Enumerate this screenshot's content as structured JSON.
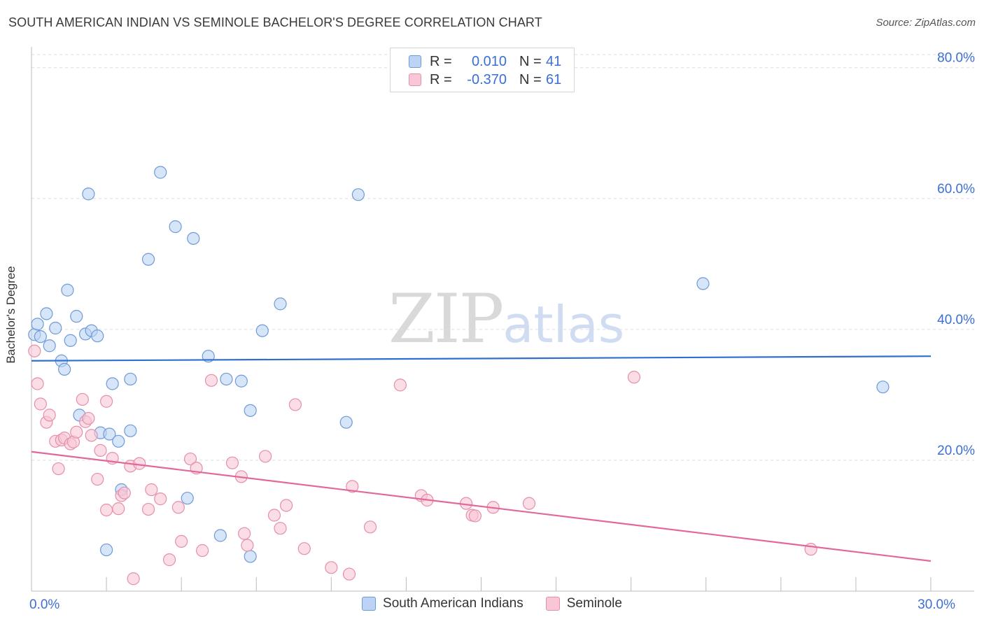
{
  "title": "SOUTH AMERICAN INDIAN VS SEMINOLE BACHELOR'S DEGREE CORRELATION CHART",
  "source": "Source: ZipAtlas.com",
  "watermark": {
    "zip": "ZIP",
    "atlas": "atlas"
  },
  "legend": {
    "rows": [
      {
        "r_label": "R =",
        "r_value": "0.010",
        "n_label": "N =",
        "n_value": "41"
      },
      {
        "r_label": "R =",
        "r_value": "-0.370",
        "n_label": "N =",
        "n_value": "61"
      }
    ]
  },
  "colors": {
    "blue_fill": "#bcd3f5",
    "blue_stroke": "#6e9ad6",
    "blue_line": "#2f6fd0",
    "pink_fill": "#f9c6d6",
    "pink_stroke": "#e58fab",
    "pink_line": "#e0689a",
    "tick_text": "#3b6fd6",
    "grid": "#dddddd"
  },
  "chart_data": {
    "type": "scatter",
    "title": "SOUTH AMERICAN INDIAN VS SEMINOLE BACHELOR'S DEGREE CORRELATION CHART",
    "xlabel": "",
    "ylabel": "Bachelor's Degree",
    "xlim": [
      0,
      30
    ],
    "ylim": [
      0,
      82
    ],
    "x_tick_labels": [
      {
        "value": 0,
        "label": "0.0%"
      },
      {
        "value": 30,
        "label": "30.0%"
      }
    ],
    "y_ticks": [
      {
        "value": 20,
        "label": "20.0%"
      },
      {
        "value": 40,
        "label": "40.0%"
      },
      {
        "value": 60,
        "label": "60.0%"
      },
      {
        "value": 80,
        "label": "80.0%"
      }
    ],
    "grid": "horizontal dashed",
    "legend_position": "bottom",
    "series": [
      {
        "name": "South American Indians",
        "color": "#6e9ad6",
        "trend": {
          "x": [
            0,
            30
          ],
          "y": [
            35.2,
            35.9
          ]
        },
        "points": [
          [
            0.1,
            39.2
          ],
          [
            0.2,
            40.8
          ],
          [
            0.3,
            38.9
          ],
          [
            0.5,
            42.4
          ],
          [
            0.6,
            37.5
          ],
          [
            0.8,
            40.2
          ],
          [
            1.0,
            35.2
          ],
          [
            1.1,
            33.9
          ],
          [
            1.2,
            46.0
          ],
          [
            1.3,
            38.3
          ],
          [
            1.5,
            42.0
          ],
          [
            1.6,
            26.9
          ],
          [
            1.8,
            39.3
          ],
          [
            1.9,
            60.7
          ],
          [
            2.0,
            39.8
          ],
          [
            2.2,
            39.0
          ],
          [
            2.3,
            24.2
          ],
          [
            2.5,
            6.3
          ],
          [
            2.6,
            24.0
          ],
          [
            2.7,
            31.7
          ],
          [
            2.9,
            22.9
          ],
          [
            3.0,
            15.5
          ],
          [
            3.3,
            32.4
          ],
          [
            3.3,
            24.5
          ],
          [
            3.9,
            50.7
          ],
          [
            4.3,
            64.0
          ],
          [
            4.8,
            55.7
          ],
          [
            5.2,
            14.2
          ],
          [
            5.4,
            53.9
          ],
          [
            5.9,
            35.9
          ],
          [
            6.3,
            8.5
          ],
          [
            6.5,
            32.4
          ],
          [
            7.0,
            32.1
          ],
          [
            7.3,
            5.3
          ],
          [
            7.3,
            27.6
          ],
          [
            7.7,
            39.8
          ],
          [
            8.3,
            43.9
          ],
          [
            10.5,
            25.8
          ],
          [
            10.9,
            60.6
          ],
          [
            22.4,
            47.0
          ],
          [
            28.4,
            31.2
          ]
        ]
      },
      {
        "name": "Seminole",
        "color": "#e58fab",
        "trend": {
          "x": [
            0,
            30
          ],
          "y": [
            21.3,
            4.6
          ]
        },
        "points": [
          [
            0.1,
            36.7
          ],
          [
            0.2,
            31.7
          ],
          [
            0.3,
            28.6
          ],
          [
            0.5,
            25.8
          ],
          [
            0.6,
            26.9
          ],
          [
            0.8,
            22.9
          ],
          [
            0.9,
            18.7
          ],
          [
            1.0,
            23.1
          ],
          [
            1.1,
            23.4
          ],
          [
            1.3,
            22.5
          ],
          [
            1.4,
            22.8
          ],
          [
            1.5,
            24.3
          ],
          [
            1.7,
            29.3
          ],
          [
            1.8,
            25.9
          ],
          [
            1.9,
            26.4
          ],
          [
            2.0,
            23.8
          ],
          [
            2.2,
            17.1
          ],
          [
            2.3,
            21.5
          ],
          [
            2.5,
            29.0
          ],
          [
            2.5,
            12.4
          ],
          [
            2.7,
            20.3
          ],
          [
            2.9,
            12.6
          ],
          [
            3.0,
            14.6
          ],
          [
            3.1,
            15.0
          ],
          [
            3.3,
            19.1
          ],
          [
            3.4,
            1.9
          ],
          [
            3.6,
            19.5
          ],
          [
            3.9,
            12.5
          ],
          [
            4.0,
            15.5
          ],
          [
            4.3,
            14.1
          ],
          [
            4.6,
            4.8
          ],
          [
            4.9,
            12.8
          ],
          [
            5.0,
            7.6
          ],
          [
            5.3,
            20.2
          ],
          [
            5.5,
            18.8
          ],
          [
            5.7,
            6.2
          ],
          [
            6.0,
            32.2
          ],
          [
            6.7,
            19.6
          ],
          [
            7.0,
            17.5
          ],
          [
            7.1,
            8.8
          ],
          [
            7.2,
            7.0
          ],
          [
            7.8,
            20.6
          ],
          [
            8.1,
            11.6
          ],
          [
            8.3,
            9.6
          ],
          [
            8.5,
            13.1
          ],
          [
            8.8,
            28.5
          ],
          [
            9.1,
            6.5
          ],
          [
            10.0,
            3.6
          ],
          [
            10.6,
            2.6
          ],
          [
            10.7,
            16.0
          ],
          [
            11.3,
            9.8
          ],
          [
            12.3,
            31.5
          ],
          [
            13.0,
            14.6
          ],
          [
            13.2,
            13.9
          ],
          [
            14.5,
            13.4
          ],
          [
            14.7,
            11.6
          ],
          [
            14.8,
            11.5
          ],
          [
            15.4,
            12.8
          ],
          [
            16.6,
            13.4
          ],
          [
            20.1,
            32.7
          ],
          [
            26.0,
            6.4
          ]
        ]
      }
    ]
  }
}
